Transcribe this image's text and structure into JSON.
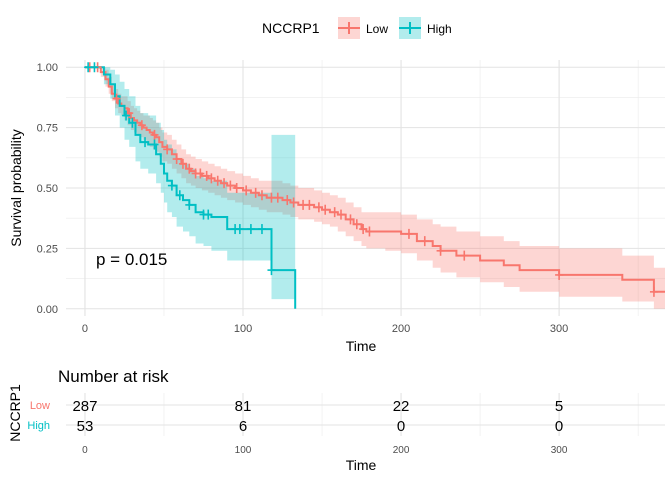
{
  "chart_data": {
    "type": "line",
    "subtype": "kaplan-meier",
    "legend": {
      "title": "NCCRP1",
      "position": "top",
      "items": [
        {
          "label": "Low",
          "color": "#F8766D"
        },
        {
          "label": "High",
          "color": "#00BFC4"
        }
      ]
    },
    "xlabel": "Time",
    "ylabel": "Survival probability",
    "xlim": [
      -12,
      367
    ],
    "ylim": [
      -0.03,
      1.03
    ],
    "x_ticks": [
      0,
      100,
      200,
      300
    ],
    "y_ticks": [
      0.0,
      0.25,
      0.5,
      0.75,
      1.0
    ],
    "y_tick_labels": [
      "0.00",
      "0.25",
      "0.50",
      "0.75",
      "1.00"
    ],
    "annotation": "p = 0.015",
    "grid": true,
    "series": [
      {
        "name": "Low",
        "color": "#F8766D",
        "x": [
          0,
          10,
          13,
          15,
          17,
          19,
          21,
          23,
          25,
          27,
          29,
          31,
          33,
          35,
          37,
          39,
          41,
          43,
          45,
          47,
          49,
          52,
          55,
          58,
          61,
          64,
          67,
          70,
          74,
          78,
          82,
          86,
          90,
          95,
          100,
          105,
          110,
          115,
          120,
          125,
          130,
          135,
          140,
          145,
          150,
          155,
          160,
          165,
          170,
          175,
          178,
          190,
          200,
          210,
          220,
          225,
          235,
          250,
          265,
          275,
          300,
          320,
          340,
          360,
          367
        ],
        "y": [
          1.0,
          0.98,
          0.95,
          0.92,
          0.89,
          0.87,
          0.85,
          0.84,
          0.83,
          0.81,
          0.79,
          0.78,
          0.77,
          0.76,
          0.75,
          0.74,
          0.73,
          0.72,
          0.71,
          0.69,
          0.67,
          0.66,
          0.64,
          0.62,
          0.6,
          0.58,
          0.57,
          0.56,
          0.55,
          0.54,
          0.53,
          0.52,
          0.51,
          0.5,
          0.49,
          0.48,
          0.47,
          0.46,
          0.46,
          0.45,
          0.44,
          0.43,
          0.43,
          0.42,
          0.41,
          0.4,
          0.39,
          0.37,
          0.35,
          0.33,
          0.32,
          0.32,
          0.31,
          0.28,
          0.26,
          0.24,
          0.22,
          0.2,
          0.18,
          0.16,
          0.14,
          0.14,
          0.12,
          0.07,
          0.07
        ],
        "lower": [
          1.0,
          0.96,
          0.92,
          0.89,
          0.86,
          0.83,
          0.81,
          0.8,
          0.78,
          0.76,
          0.74,
          0.73,
          0.72,
          0.71,
          0.7,
          0.68,
          0.67,
          0.66,
          0.65,
          0.63,
          0.61,
          0.6,
          0.58,
          0.56,
          0.54,
          0.52,
          0.51,
          0.5,
          0.49,
          0.48,
          0.47,
          0.46,
          0.45,
          0.44,
          0.43,
          0.42,
          0.41,
          0.4,
          0.4,
          0.39,
          0.38,
          0.37,
          0.37,
          0.36,
          0.35,
          0.34,
          0.32,
          0.3,
          0.28,
          0.26,
          0.25,
          0.24,
          0.23,
          0.2,
          0.17,
          0.15,
          0.13,
          0.11,
          0.09,
          0.07,
          0.05,
          0.05,
          0.03,
          0.0,
          0.0
        ],
        "upper": [
          1.0,
          1.0,
          0.99,
          0.96,
          0.93,
          0.91,
          0.89,
          0.88,
          0.88,
          0.86,
          0.84,
          0.83,
          0.82,
          0.81,
          0.8,
          0.8,
          0.79,
          0.78,
          0.77,
          0.75,
          0.73,
          0.72,
          0.7,
          0.68,
          0.66,
          0.64,
          0.63,
          0.62,
          0.61,
          0.6,
          0.59,
          0.58,
          0.57,
          0.56,
          0.55,
          0.54,
          0.53,
          0.53,
          0.53,
          0.52,
          0.51,
          0.5,
          0.5,
          0.49,
          0.48,
          0.47,
          0.46,
          0.44,
          0.42,
          0.4,
          0.4,
          0.4,
          0.39,
          0.37,
          0.35,
          0.34,
          0.32,
          0.3,
          0.28,
          0.26,
          0.25,
          0.25,
          0.22,
          0.17,
          0.17
        ],
        "censor_x": [
          3,
          8,
          20,
          28,
          36,
          44,
          52,
          58,
          62,
          66,
          70,
          73,
          77,
          80,
          84,
          88,
          92,
          96,
          102,
          108,
          112,
          118,
          122,
          128,
          132,
          138,
          142,
          148,
          152,
          158,
          162,
          168,
          172,
          176,
          180,
          205,
          215,
          225,
          240,
          300,
          360
        ]
      },
      {
        "name": "High",
        "color": "#00BFC4",
        "x": [
          0,
          12,
          16,
          19,
          22,
          25,
          28,
          32,
          35,
          40,
          45,
          48,
          50,
          52,
          55,
          58,
          62,
          66,
          70,
          75,
          80,
          90,
          100,
          118,
          133
        ],
        "y": [
          1.0,
          0.97,
          0.93,
          0.88,
          0.84,
          0.8,
          0.77,
          0.72,
          0.69,
          0.68,
          0.64,
          0.6,
          0.56,
          0.53,
          0.51,
          0.47,
          0.45,
          0.43,
          0.4,
          0.39,
          0.38,
          0.33,
          0.33,
          0.16,
          0.0
        ],
        "lower": [
          1.0,
          0.93,
          0.87,
          0.8,
          0.75,
          0.7,
          0.67,
          0.61,
          0.58,
          0.56,
          0.52,
          0.48,
          0.44,
          0.4,
          0.38,
          0.34,
          0.32,
          0.3,
          0.27,
          0.26,
          0.24,
          0.2,
          0.2,
          0.04,
          0.04
        ],
        "upper": [
          1.0,
          1.0,
          0.99,
          0.97,
          0.94,
          0.91,
          0.88,
          0.84,
          0.81,
          0.8,
          0.77,
          0.74,
          0.7,
          0.68,
          0.66,
          0.62,
          0.6,
          0.58,
          0.55,
          0.54,
          0.53,
          0.48,
          0.48,
          0.72,
          0.72
        ],
        "censor_x": [
          2,
          6,
          26,
          30,
          38,
          44,
          55,
          60,
          66,
          75,
          78,
          95,
          98,
          105,
          112,
          118
        ]
      }
    ],
    "risk_table": {
      "title": "Number at risk",
      "ylabel": "NCCRP1",
      "xlabel": "Time",
      "times": [
        0,
        100,
        200,
        300
      ],
      "rows": [
        {
          "label": "Low",
          "color": "#F8766D",
          "values": [
            "287",
            "81",
            "22",
            "5"
          ]
        },
        {
          "label": "High",
          "color": "#00BFC4",
          "values": [
            "53",
            "6",
            "0",
            "0"
          ]
        }
      ]
    }
  }
}
